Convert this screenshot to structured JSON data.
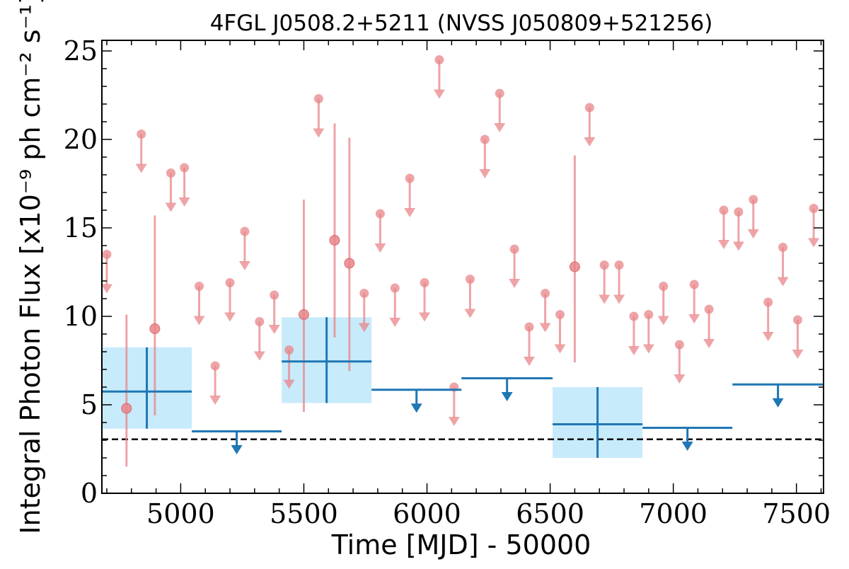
{
  "chart_data": {
    "type": "scatter",
    "title": "4FGL J0508.2+5211 (NVSS J050809+521256)",
    "xlabel": "Time [MJD] - 50000",
    "ylabel": "Integral Photon Flux [x10⁻⁹ ph cm⁻² s⁻¹]",
    "xlim": [
      4680,
      7610
    ],
    "ylim": [
      0,
      25.6
    ],
    "xticks": [
      5000,
      5500,
      6000,
      6500,
      7000,
      7500
    ],
    "yticks": [
      0,
      5,
      10,
      15,
      20,
      25
    ],
    "grid": false,
    "reference_line": {
      "y": 3.05,
      "style": "dashed",
      "color": "#000000"
    },
    "colors": {
      "short_bins": "#e8868a",
      "long_bins_line": "#1f77b4",
      "long_bins_band": "#c8ebfb"
    },
    "series": [
      {
        "kind": "short_bin_detections",
        "points": [
          {
            "x": 4780,
            "y": 4.8,
            "ylo": 1.5,
            "yhi": 10.1
          },
          {
            "x": 4895,
            "y": 9.3,
            "ylo": 4.4,
            "yhi": 15.7
          },
          {
            "x": 5500,
            "y": 10.1,
            "ylo": 4.6,
            "yhi": 16.6
          },
          {
            "x": 5625,
            "y": 14.3,
            "ylo": 8.8,
            "yhi": 20.9
          },
          {
            "x": 5685,
            "y": 13.0,
            "ylo": 6.9,
            "yhi": 20.1
          },
          {
            "x": 6600,
            "y": 12.8,
            "ylo": 7.4,
            "yhi": 19.1
          }
        ]
      },
      {
        "kind": "short_bin_upper_limits",
        "points": [
          {
            "x": 4700,
            "y": 13.5
          },
          {
            "x": 4840,
            "y": 20.3
          },
          {
            "x": 4960,
            "y": 18.1
          },
          {
            "x": 5015,
            "y": 18.4
          },
          {
            "x": 5075,
            "y": 11.7
          },
          {
            "x": 5140,
            "y": 7.2
          },
          {
            "x": 5200,
            "y": 11.9
          },
          {
            "x": 5260,
            "y": 14.8
          },
          {
            "x": 5320,
            "y": 9.7
          },
          {
            "x": 5380,
            "y": 11.2
          },
          {
            "x": 5440,
            "y": 8.1
          },
          {
            "x": 5560,
            "y": 22.3
          },
          {
            "x": 5745,
            "y": 11.3
          },
          {
            "x": 5810,
            "y": 15.8
          },
          {
            "x": 5870,
            "y": 11.6
          },
          {
            "x": 5930,
            "y": 17.8
          },
          {
            "x": 5990,
            "y": 11.9
          },
          {
            "x": 6050,
            "y": 24.5
          },
          {
            "x": 6110,
            "y": 6.0
          },
          {
            "x": 6175,
            "y": 12.1
          },
          {
            "x": 6235,
            "y": 20.0
          },
          {
            "x": 6295,
            "y": 22.6
          },
          {
            "x": 6355,
            "y": 13.8
          },
          {
            "x": 6415,
            "y": 9.4
          },
          {
            "x": 6480,
            "y": 11.3
          },
          {
            "x": 6540,
            "y": 10.1
          },
          {
            "x": 6660,
            "y": 21.8
          },
          {
            "x": 6720,
            "y": 12.9
          },
          {
            "x": 6780,
            "y": 12.9
          },
          {
            "x": 6840,
            "y": 10.0
          },
          {
            "x": 6900,
            "y": 10.1
          },
          {
            "x": 6960,
            "y": 11.7
          },
          {
            "x": 7025,
            "y": 8.4
          },
          {
            "x": 7085,
            "y": 11.8
          },
          {
            "x": 7145,
            "y": 10.4
          },
          {
            "x": 7205,
            "y": 16.0
          },
          {
            "x": 7265,
            "y": 15.9
          },
          {
            "x": 7325,
            "y": 16.6
          },
          {
            "x": 7385,
            "y": 10.8
          },
          {
            "x": 7445,
            "y": 13.9
          },
          {
            "x": 7505,
            "y": 9.8
          },
          {
            "x": 7570,
            "y": 16.1
          }
        ]
      },
      {
        "kind": "long_bin_detections",
        "points": [
          {
            "x0": 4680,
            "x1": 5045,
            "y": 5.75,
            "ylo": 3.65,
            "yhi": 8.25
          },
          {
            "x0": 5410,
            "x1": 5775,
            "y": 7.45,
            "ylo": 5.1,
            "yhi": 9.95
          },
          {
            "x0": 6510,
            "x1": 6875,
            "y": 3.9,
            "ylo": 2.0,
            "yhi": 6.0
          }
        ]
      },
      {
        "kind": "long_bin_upper_limits",
        "points": [
          {
            "x0": 5045,
            "x1": 5410,
            "y": 3.5
          },
          {
            "x0": 5775,
            "x1": 6140,
            "y": 5.85
          },
          {
            "x0": 6140,
            "x1": 6510,
            "y": 6.5
          },
          {
            "x0": 6875,
            "x1": 7240,
            "y": 3.7
          },
          {
            "x0": 7240,
            "x1": 7610,
            "y": 6.15
          }
        ]
      }
    ]
  }
}
